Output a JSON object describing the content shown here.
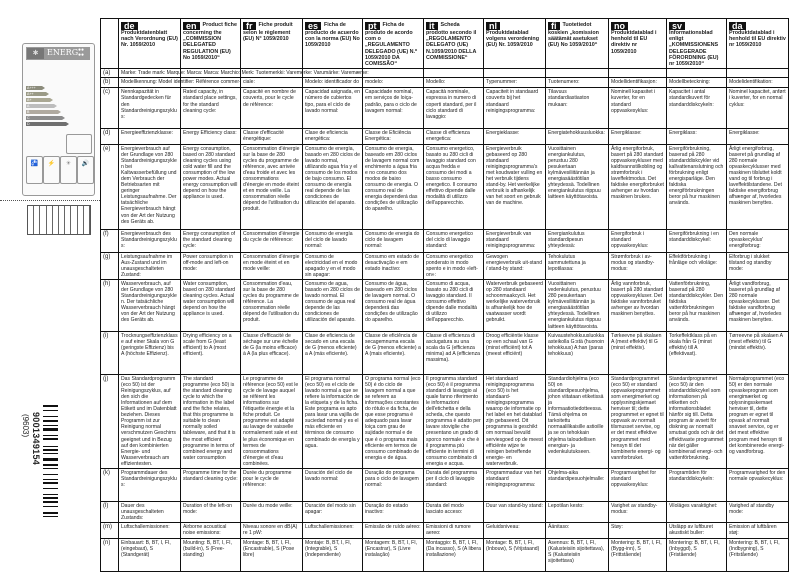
{
  "energy_label": {
    "brand": "ENERG",
    "classes": [
      "A+++",
      "A++",
      "A+",
      "A",
      "B",
      "C",
      "D"
    ],
    "class_colors": [
      "#8c8c7c",
      "#9a9a86",
      "#aaa894",
      "#bdbdbd",
      "#b0aaa0",
      "#8c8c8c",
      "#6f6f6f"
    ],
    "icons": [
      "water-icon",
      "energy-icon",
      "drying-icon",
      "noise-icon"
    ]
  },
  "barcode": {
    "number": "9001349154",
    "sub": "(9603)"
  },
  "languages": [
    {
      "code": "de",
      "title": "Produktdatenblatt nach Verordnung (EU) Nr. 1059/2010"
    },
    {
      "code": "en",
      "title": "Product fiche concerning the „COMMISSION DELEGATED REGULATION (EU) No 1059/2010“"
    },
    {
      "code": "fr",
      "title": "Fiche produit selon le règlement (EU) N° 1059/2010"
    },
    {
      "code": "es",
      "title": "Ficha de producto de acuerdo con la norma (EU) No 1059/2010"
    },
    {
      "code": "pt",
      "title": "Ficha de produto de acordo com o „REGULAMENTO DELEGADO (UE) N.º 1059/2010 DA COMISSÃO“"
    },
    {
      "code": "it",
      "title": "Scheda prodotto secondo il „REGOLAMENTO DELEGATO (UE) N.1059/2010 DELLA COMMISSIONE“"
    },
    {
      "code": "nl",
      "title": "Produktdatablad volgens verordening (EU) Nr. 1059/2010"
    },
    {
      "code": "fi",
      "title": "Tuotetiedot koskien „komission säätämät asetukset (EU) No 1059/2010“"
    },
    {
      "code": "no",
      "title": "Produktdatablad i henhold til EU direktiv nr 1059/2010"
    },
    {
      "code": "sv",
      "title": "Informationsblad enligt „KOMMISSIONENS DELEGERADE FÖRORDNING (EU) nr 1059/2010“"
    },
    {
      "code": "da",
      "title": "Produktdatablad i henhold til EU direktiv nr 1059/2010"
    }
  ],
  "row_a": {
    "label": "(a)",
    "text": "Marke: Trade mark: Marque: Marca: Marca: Marchio: Merk: Tuotemerkki: Varemerke: Varumärke: Varemærke:"
  },
  "rows": [
    {
      "label": "(b)",
      "cells": [
        "Modellkennung: Model identifier: Référence commer-",
        "",
        "ciale:",
        "Modelo: identificador do",
        "modelo:",
        "Modello:",
        "Typenummer:",
        "Tuotenumero:",
        "Modellidentifikasjon:",
        "Modellbeteckning:",
        "Modelidentifikation:"
      ]
    },
    {
      "label": "(c)",
      "cells": [
        "Nennkapazität in Standardgedecken für den Standardreinigungszyklus:",
        "Rated capacity, in standard place settings, for the standard cleaning cycle:",
        "Capacité en nombre de couverts, pour le cycle de référence:",
        "Capacidad asignada, en número de cubiertos tipo, para el ciclo de lavado normal:",
        "Capacidade nominal, em serviços de loiça-padrão, para o ciclo de lavagem normal:",
        "Capacità nominale, espressa in numero di coperti standard, per il ciclo standard di lavaggio:",
        "Capaciteit in standaard couverts bij het standaard reinigingsprogramma:",
        "Tilavuus standardiastiaston mukaan:",
        "Nominell kapasitet i kuverter, for en standard oppvaskesyklus:",
        "Kapacitet i antal standardkuvert för standarddiskcykeln:",
        "Nominel kapacitet, anført i kuverter, for en normal cyklus:"
      ]
    },
    {
      "label": "(d)",
      "cells": [
        "Energieeffizienzklasse:",
        "Energy Efficiency class:",
        "Classe d'efficacité énergétique:",
        "Clase de eficiencia energética:",
        "Classe de Eficiência Energética:",
        "Classe di efficienza energetica:",
        "Energieklasse:",
        "Energiatehokkuusluokka:",
        "Energiklasse:",
        "Energiklass:",
        "Energiklasse:"
      ]
    },
    {
      "label": "(e)",
      "cells": [
        "Energieverbrauch auf der Grundlage von 280 Standardreinigungszyklen bei Kaltwasserbefüllung und dem Verbrauch der Betriebsarten mit geringer Leistungsaufnahme. Der tatsächliche Energieverbrauch hängt von der Art der Nutzung des Geräts ab.",
        "Energy consumption, based on 280 standard cleaning cycles using cold water fill and the consumption of the low power modes. Actual energy consumption will depend on how the appliance is used.",
        "Consommation d'énergie sur la base de 280 cycles du programme de référence, avec arrivée d'eau froide et avec les consommations d'énergie en mode éteint et en mode veille. La consommation réelle dépend de l'utilisation du produit.",
        "Consumo de energía, basado en 280 ciclos de lavado normal, utilizando agua fría y el consumo de los modos de bajo consumo. El consumo de energía real depende de las condiciones de utilización del aparato.",
        "Consumo de energia, baseado em 280 ciclos de lavagem normal com enchimento a água fria e no consumo dos modos de baixo consumo de energia. O consumo real de energia dependerá das condições de utilização do aparelho.",
        "Consumo energetico, basato su 280 cicli di lavaggio standard con acqua fredda e consumo dei modi a basso consumo energetico. Il consumo effettivo dipende dalle modalità di utilizzo dell'apparecchio.",
        "Energieverbruik gebaseerd op 280 standaard reinigingsprogramma's met koudwater vulling en het verbruik tijdens stand-by. Het werkelijke verbruik is afhankelijk van het soort en gebruik van de machine.",
        "Vuosittainen energiankulutus, perustuu 280 pesukertaan kylmävesiliitännän ja energiasäästötilan yhteydessä. Todellinen energiankulutus riippuu laitteen käyttötavoista.",
        "Årlig energiforbruk, basert på 280 standard oppvaskesykluser med kaldtvannstilkobling og strømforbruk i laveffektmodus. Det faktiske energiforbruket avhenger av hvordan maskinen brukes.",
        "Energiförbrukning, baserad på 280 standarddiskcykler vid kallvattenanslutning och förbrukning enligt energisparläge. Den faktiska energiförbrukningen beror på hur maskinen används.",
        "Årligt energiforbrug, baseret på grundlag af 280 normale opvaskecyklusser med maskinen tilsluttet koldt vand og til forbrug i laveffektilstandene. Det faktiske energiforbrug afhænger af, hvorledes maskinen benyttes."
      ]
    },
    {
      "label": "(f)",
      "cells": [
        "Energieverbrauch des Standardreinigungszyklus:",
        "Energy consumption of the standard cleaning cycle:",
        "Consommation d'énergie du cycle de référence:",
        "Consumo de energía del ciclo de lavado normal:",
        "Consumo de energia do ciclo de lavagem normal:",
        "Consumo energetico del ciclo di lavaggio standard:",
        "Energieverbruik van standaard reinigingsprogramma:",
        "Energiankulutus standardipesun yhteydessä:",
        "Energiforbruk i standard oppvaskesyklus:",
        "Energiförbrukning i en standarddiskcykel:",
        "Den normale opvaskecyklus' energiforbrug:"
      ]
    },
    {
      "label": "(g)",
      "cells": [
        "Leistungsaufnahme im Aus-Zustand und im unausgeschalteten Zustand:",
        "Power consumption in off-mode and left-on mode:",
        "Consommation d'énergie en mode éteint et en mode veille:",
        "Consumo de electricidad en el modo apagado y en el modo sin apagar:",
        "Consumo em estado de desactivação e em estado inactivo:",
        "Consumo energetico ponderato in modo spento e in modo «left-on»:",
        "Gewogen energieverbruik uit-stand / stand-by stand:",
        "Tehokulutus sammutettuna ja lepotilassa:",
        "Strømforbruk i av-modus og standby-modus:",
        "Effektförbrukning i frånläge och viloläge:",
        "Elforbrug i slukket tilstand og standby mode:"
      ]
    },
    {
      "label": "(h)",
      "cells": [
        "Wasserverbrauch, auf der Grundlage von 280 Standardreinigungszyklen. Der tatsächliche Wasserverbrauch hängt von der Art der Nutzung des Geräts ab.",
        "Water consumption, based on 280 standard cleaning cycles. Actual water consumption will depend on how the appliance is used.",
        "Consommation d'eau, sur la base de 280 cycles du programme de référence. La consommation réelle dépend de l'utilisation du produit.",
        "Consumo de agua, basado en 280 ciclos de lavado normal. El consumo de agua real depende de las condiciones de utilización del aparato.",
        "Consumo de água, baseado em 280 ciclos de lavagem normal. O consumo real de água dependerá das condições de utilização do aparelho.",
        "Consumo di acqua, basato su 280 cicli di lavaggio standard. Il consumo effettivo dipende dalle modalità di utilizzo dell'apparecchio.",
        "Waterverbruik gebaseerd op 280 standaard schoonmaakcycli. Het werkelijke waterverbruik is afhankelijk hoe de vaatwasser wordt gebruikt.",
        "Vuosittainen vedenkulutus, perustuu 280 pesukertaan kylmävesiliitännän ja energiasäästötilan yhteydessä. Todellinen energiankulutus riippuu laitteen käyttötavoista.",
        "Årlig vannforbruk, basert på 280 standard oppvaskesykluser. Det faktiske vannforbruket avhenger av hvordan maskinen benyttes.",
        "Vattenförbrukning, baserad på 280 standarddiskcykler. Den faktiska vattenförbrukningen beror på hur maskinen används.",
        "Årligt vandforbrug, baseret på grundlag af 280 normale opvaskecyklusser. Det faktiske vandforbrug afhænger af, hvorledes maskinen benyttes."
      ]
    },
    {
      "label": "(i)",
      "cells": [
        "Trocknungseffizienzklasse auf einer Skala von G (geringste Effizienz) bis A (höchste Effizienz).",
        "Drying efficiency on a scale from G (least efficient) to A (most efficient).",
        "Classe d'efficacité de séchage sur une échelle de G (la moins efficace) à A (la plus efficace).",
        "Clase de eficiencia de secado en una escala de G (menos eficiente) a A (más eficiente).",
        "Classe de eficiência de secagemnuma escala de G (menos eficiente) a A (mais eficiente).",
        "Classe di efficienza di asciugatura su una scala da G (efficienza minima) ad A (efficienza massima).",
        "Droog efficiëntie klasse op een schaal van G (minst efficiënt) tot A (meest efficiënt)",
        "Kuivaustehokkuusluokka asteikolla G:stä (huonoin tehokkuus) A:han (paras tehokkuus)",
        "Tørkeevne på skalaen A (mest effektiv) til G (minst effektiv).",
        "Torkeffektklass på en skala från G (minst effektiv) till A (effektivast).",
        "Tørreevne på skalaen A (mest effektiv) til G (mindst effektiv)."
      ]
    },
    {
      "label": "(j)",
      "cells": [
        "Das Standardprogramm (eco 50) ist der Reinigungszyklus, auf den sich die Informationen auf dem Etikett und im Datenblatt beziehen. Dieses Programm ist zur Reinigung normal verschmutzen Geschirrs geeignet und in Bezug auf den kombinierten Energie- und Wasserverbrauch am effizientesten.",
        "The standard programme (eco 50) is the standard cleaning cycle to which the information in the label and the fiche relates, that this programme is suitable to clean normally soiled tableware, and that it is the most efficient programme in terms of combined energy and water consumption",
        "Le programme de référence (eco 50) est le cycle de lavage auquel se réfèrent les informations sur l'étiquette énergie et la fiche produit. Ce programme est adapté au lavage de vaisselle normalement sale et est le plus économique en termes de consommations d'énergie et d'eau combinées.",
        "El programa normal (eco 50) es el ciclo de lavado normal a que se refiere la información de la etiqueta y de la ficha. Este programa es apto para lavar una vajilla de suciedad normal y es el más eficiente en términos de consumo combinado de energía y agua.",
        "O programa normal (eco 50) é do ciclo de lavagem normal a que se referem as informações constantes do rótulo e da ficha, de que esse programa é adequado para lavar loiça com grau de sujidade normal e de que é o programa mais eficiente em termos de consumo combinado de energia e de água.",
        "Il programma standard (eco 50) è il programma standard di lavaggio al quale fanno riferimento le informazioni dell'etichetta e della scheda, che questo programma è adatto per lavare stoviglie che presentano un grado di sporco normale e che è il programma più efficiente in termini di consumo combinato di energia e acqua.",
        "Het standaard reinigingsprogramma (eco 50) is het standaard-reinigingsprogramma waarop de informatie op het label en het datablad zijn gebaseerd. Dit programma is geschikt om normaal bevuild serviesgoed op de meest efficiënte wijze te reinigen betreffende energie- en waterverbruik.",
        "Standardiohjelma (eco 50) on standardipesuohjelma, johon viitataan etiketissä ja informaatiotiedotteessa. Tämä ohjelma on tarkoitettu normaalilikaisille astioille ja se on tehokkain ohjelma taloudellisen energian- ja vedenkulutukseen.",
        "Standardprogrammet (eco 50) er standard oppvaskeprogrammet som energimerket og opplysningskjemaet henviser til; dette programmet er egnet til oppvask av normalt tilsmusset servise, og er det mest effektive programmet med hensyn til det kombinerte energi- og vannforbruket.",
        "Standardprogrammet (eco 50) är den standarddiskcykel som informationen på etiketten och informationsbladet hänför sig till. Detta program är avsett för diskning av normalt smutsat gods och är det effektivaste programmet när det gäller kombinerad energi- och vattenförbrukning.",
        "Normalprogrammet (eco 50) er den normale opvaskeprogram som energimærket og oplysningsskemaet henviser til, dette program er egnet til opvask af normalt snavset service, og er det mest effektive program med hensyn til det kombinerede energi- og vandforbrug."
      ]
    },
    {
      "label": "(k)",
      "cells": [
        "Programmdauer des Standardreinigungszyklus:",
        "Programme time for the standard cleaning cycle:",
        "Durée du programme pour le cycle de référence:",
        "Duración del ciclo de lavado normal:",
        "Duração do programa para o ciclo de lavagem normal:",
        "Durata del programma per il ciclo di lavaggio standard:",
        "Programmaduur van het standaard reinigingsprogramma:",
        "Ohjelma-aika standardipesuohjelmalle:",
        "Programvarighet for standard oppvaskesyklus:",
        "Programtiden för standarddiskcykeln:",
        "Programvarighed for den normale opvaskecyklus:"
      ]
    },
    {
      "label": "(l)",
      "cells": [
        "Dauer des unausgeschalteten Zustands:",
        "Duration of the left-on mode:",
        "Durée du mode veille:",
        "Duración del modo sin apagar:",
        "Duração do estado inactivo:",
        "Durata del modo lasciato acceso:",
        "Duur van stand-by stand:",
        "Lepotilan kesto:",
        "Varighet av standby-modus:",
        "Viloläges varaktighet:",
        "Varighed af standby mode:"
      ]
    },
    {
      "label": "(m)",
      "cells": [
        "Luftschallemissionen:",
        "Airborne acoustical noise emissions:",
        "Niveau sonore en dB(A) re 1 pW:",
        "Luftschallemissionen:",
        "Emissão de ruído aéreo:",
        "Emissioni di rumore aereo:",
        "Geluidsniveau:",
        "Äänitaso:",
        "Støy:",
        "Utsläpp av luftburet akustiskt buller:",
        "Emission af luftbåren støj:"
      ]
    },
    {
      "label": "(n)",
      "cells": [
        "Einbauart: B, BT, I, FI, (eingebaut), S (Standgerät)",
        "Mounting: B, BT, I, FI, (build-in), S (Free-standing)",
        "Montage: B, BT, I, FI, (Encastrable), S (Pose libre)",
        "Montaje: B, BT, I, FI, (Integrable), S (Independiente)",
        "Montagem: B, BT, I, FI, (Encastrar), S (Livre instalação)",
        "Montaggio: B, BT, I, FI, (Da incasso), S (A libera installazione)",
        "Montage: B, BT, I, FI, (Inbouw), S (Vrijstaand)",
        "Asennus: B, BT, I, FI, (Kalusteisiin sijoitettava), S (Kalusteisiin sijoitettava)",
        "Montering: B, BT, I, FI, (Bygg-inn), S (Frittstående)",
        "Montering: B, BT, I, FI, (Inbyggd), S (Fristående)",
        "Montering: B, BT, I, FI, (Indbygning), S (Fritstående)"
      ]
    }
  ]
}
